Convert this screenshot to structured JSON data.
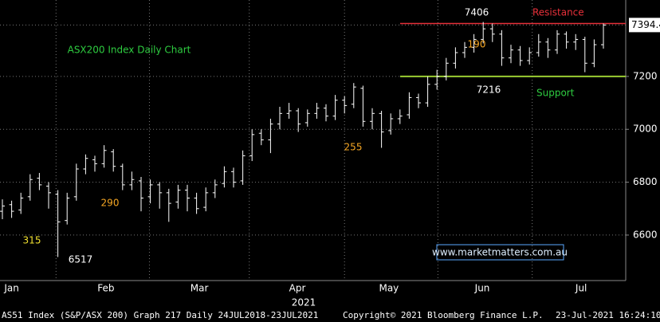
{
  "chart_data": {
    "type": "ohlc",
    "title": "ASX200 Index Daily Chart",
    "open": [
      6690,
      6715,
      6695,
      6745,
      6815,
      6785,
      6755,
      6655,
      6745,
      6850,
      6885,
      6870,
      6915,
      6860,
      6790,
      6805,
      6745,
      6790,
      6760,
      6725,
      6770,
      6740,
      6705,
      6760,
      6795,
      6840,
      6805,
      6900,
      6985,
      6960,
      7020,
      7060,
      7070,
      7025,
      7060,
      7080,
      7050,
      7110,
      7095,
      7155,
      7030,
      7060,
      6995,
      7040,
      7055,
      7120,
      7100,
      7170,
      7200,
      7250,
      7290,
      7310,
      7340,
      7380,
      7360,
      7270,
      7300,
      7260,
      7290,
      7330,
      7300,
      7360,
      7330,
      7340,
      7250,
      7320
    ],
    "high": [
      6735,
      6730,
      6760,
      6830,
      6835,
      6800,
      6770,
      6760,
      6870,
      6905,
      6900,
      6940,
      6925,
      6870,
      6840,
      6820,
      6810,
      6800,
      6775,
      6790,
      6790,
      6760,
      6780,
      6810,
      6860,
      6855,
      6920,
      7000,
      7000,
      7040,
      7085,
      7100,
      7080,
      7075,
      7100,
      7095,
      7130,
      7125,
      7175,
      7165,
      7080,
      7070,
      7060,
      7075,
      7140,
      7135,
      7200,
      7225,
      7270,
      7310,
      7330,
      7360,
      7406,
      7400,
      7375,
      7320,
      7315,
      7310,
      7360,
      7345,
      7375,
      7370,
      7360,
      7350,
      7340,
      7400
    ],
    "low": [
      6660,
      6665,
      6680,
      6730,
      6770,
      6700,
      6517,
      6640,
      6730,
      6830,
      6840,
      6855,
      6840,
      6770,
      6770,
      6690,
      6720,
      6700,
      6650,
      6700,
      6690,
      6680,
      6690,
      6740,
      6780,
      6780,
      6790,
      6880,
      6940,
      6910,
      7000,
      7040,
      6990,
      7010,
      7040,
      7030,
      7035,
      7060,
      7080,
      7010,
      7000,
      6930,
      6980,
      7020,
      7040,
      7080,
      7085,
      7150,
      7185,
      7230,
      7270,
      7290,
      7325,
      7330,
      7240,
      7250,
      7240,
      7245,
      7275,
      7270,
      7285,
      7305,
      7300,
      7216,
      7235,
      7305
    ],
    "close": [
      6710,
      6690,
      6740,
      6810,
      6790,
      6760,
      6650,
      6740,
      6850,
      6890,
      6870,
      6920,
      6860,
      6790,
      6810,
      6740,
      6790,
      6760,
      6720,
      6770,
      6740,
      6700,
      6760,
      6790,
      6840,
      6800,
      6900,
      6980,
      6960,
      7020,
      7060,
      7070,
      7020,
      7060,
      7080,
      7050,
      7110,
      7090,
      7160,
      7030,
      7060,
      6990,
      7040,
      7050,
      7120,
      7100,
      7170,
      7200,
      7250,
      7290,
      7310,
      7340,
      7380,
      7360,
      7270,
      7300,
      7260,
      7290,
      7330,
      7300,
      7360,
      7330,
      7340,
      7250,
      7320,
      7394.4
    ],
    "last_price_label": "7394.4",
    "ylim": [
      6428,
      7489
    ],
    "yticks": [
      6600,
      6800,
      7000,
      7200
    ],
    "xticks": [
      {
        "value": 1.0,
        "label": "Jan"
      },
      {
        "value": 11.2,
        "label": "Feb"
      },
      {
        "value": 21.3,
        "label": "Mar"
      },
      {
        "value": 31.9,
        "label": "Apr"
      },
      {
        "value": 41.8,
        "label": "May"
      },
      {
        "value": 51.9,
        "label": "Jun"
      },
      {
        "value": 62.6,
        "label": "Jul"
      }
    ],
    "xgrid": [
      5.8,
      15.9,
      26.7,
      37,
      47.1,
      57.3
    ],
    "year_label": "2021",
    "resistance": 7400,
    "resistance_label": "Resistance",
    "support": 7200,
    "support_label": "Support",
    "annotations": [
      "7406",
      "190",
      "7216",
      "255",
      "290",
      "315",
      "6517"
    ],
    "watermark": "www.marketmatters.com.au",
    "footer": [
      "AS51 Index (S&P/ASX 200) Graph 217  Daily 24JUL2018-23JUL2021",
      "Copyright© 2021 Bloomberg Finance L.P.",
      "23-Jul-2021 16:24:10"
    ],
    "grid": true
  }
}
